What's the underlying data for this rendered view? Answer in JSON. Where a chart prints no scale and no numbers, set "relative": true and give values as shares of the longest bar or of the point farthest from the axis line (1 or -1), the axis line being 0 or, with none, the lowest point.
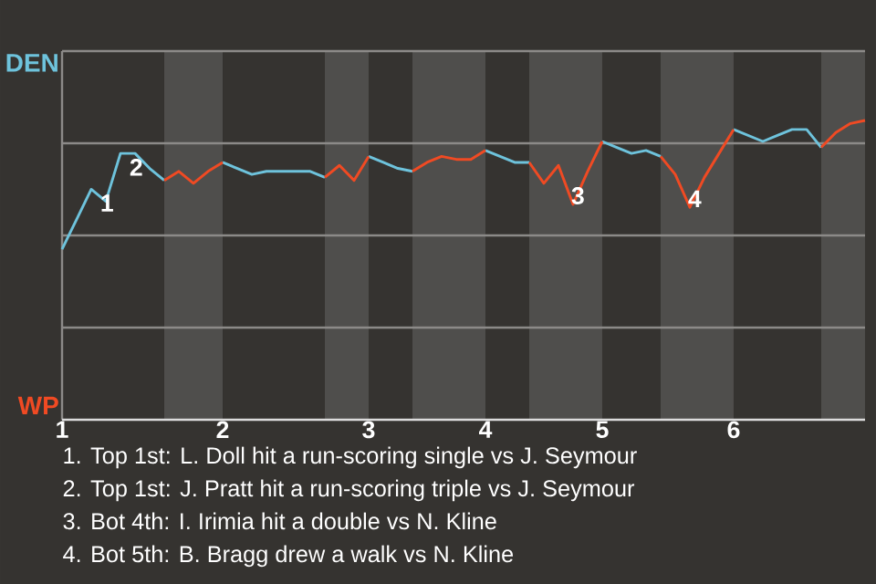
{
  "chart_data": {
    "type": "line",
    "relative": true,
    "grid": true,
    "categories": [
      "1",
      null,
      null,
      null,
      null,
      null,
      null,
      null,
      null,
      null,
      null,
      "2",
      null,
      null,
      null,
      null,
      null,
      null,
      null,
      null,
      null,
      "3",
      null,
      null,
      null,
      null,
      null,
      null,
      null,
      "4",
      null,
      null,
      null,
      null,
      null,
      null,
      null,
      "5",
      null,
      null,
      null,
      null,
      null,
      null,
      null,
      null,
      "6",
      null,
      null,
      null,
      null,
      null,
      null,
      null,
      null,
      null
    ],
    "series": [
      {
        "name": "DEN",
        "color": "#6ec3dc",
        "values": [
          0.57,
          0.67,
          0.77,
          0.73,
          0.89,
          0.89,
          0.84,
          0.8,
          null,
          null,
          null,
          0.86,
          0.84,
          0.82,
          0.83,
          0.83,
          0.83,
          0.83,
          0.81,
          null,
          null,
          0.88,
          0.86,
          0.84,
          0.83,
          null,
          null,
          null,
          null,
          0.9,
          0.88,
          0.86,
          0.86,
          null,
          null,
          null,
          null,
          0.93,
          0.91,
          0.89,
          0.9,
          0.88,
          null,
          null,
          null,
          null,
          0.97,
          0.95,
          0.93,
          0.95,
          0.97,
          0.97,
          0.91,
          null,
          null,
          null
        ]
      },
      {
        "name": "WP",
        "color": "#f04a23",
        "values": [
          null,
          null,
          null,
          null,
          null,
          null,
          null,
          0.8,
          0.83,
          0.79,
          0.83,
          0.86,
          null,
          null,
          null,
          null,
          null,
          null,
          0.81,
          0.85,
          0.8,
          0.88,
          null,
          null,
          0.83,
          0.86,
          0.88,
          0.87,
          0.87,
          0.9,
          null,
          null,
          0.86,
          0.79,
          0.85,
          0.72,
          0.83,
          0.93,
          null,
          null,
          null,
          0.88,
          0.82,
          0.71,
          0.81,
          0.89,
          0.97,
          null,
          null,
          null,
          null,
          null,
          0.91,
          0.96,
          0.99,
          1.0
        ]
      }
    ],
    "annotations": [
      {
        "text": "1",
        "y": 0.77
      },
      {
        "text": "2",
        "y": 0.89
      },
      {
        "text": "3",
        "y": 0.72
      },
      {
        "text": "4",
        "y": 0.71
      },
      "1. Top 1st: L. Doll hit a run-scoring single vs J. Seymour",
      "2. Top 1st: J. Pratt hit a run-scoring triple vs J. Seymour",
      "3. Bot 4th: I. Irimia hit a double vs N. Kline",
      "4. Bot 5th: B. Bragg drew a walk vs N. Kline"
    ]
  }
}
